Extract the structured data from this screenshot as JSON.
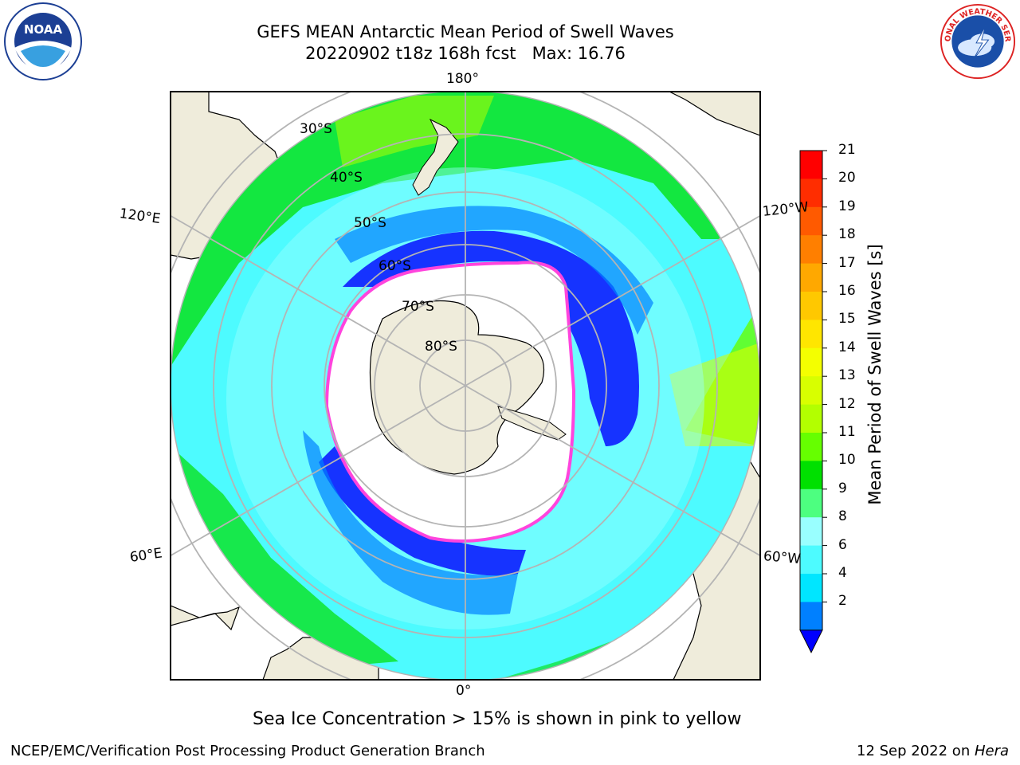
{
  "title": {
    "line1": "GEFS MEAN Antarctic Mean Period of Swell Waves",
    "line2": "20220902 t18z 168h fcst   Max: 16.76"
  },
  "map": {
    "projection": "south-polar-stereographic",
    "lon_labels": {
      "top": "180°",
      "bottom": "0°",
      "upper_left": "120°E",
      "lower_left": "60°E",
      "upper_right": "120°W",
      "lower_right": "60°W"
    },
    "lat_labels": [
      "30°S",
      "40°S",
      "50°S",
      "60°S",
      "70°S",
      "80°S"
    ],
    "colors": {
      "land": "#efecdb",
      "grid": "#b4b4b4",
      "antarctic_ice_region": "#ffffff",
      "sea_ice_edge": "#ff44dd"
    }
  },
  "colorbar": {
    "label": "Mean Period of Swell Waves [s]",
    "ticks": [
      "21",
      "20",
      "19",
      "18",
      "17",
      "16",
      "15",
      "14",
      "13",
      "12",
      "11",
      "10",
      "9",
      "8",
      "6",
      "4",
      "2"
    ],
    "colors_top_to_bottom": [
      "#ff0000",
      "#ff2d00",
      "#ff5a00",
      "#ff7f00",
      "#ffa800",
      "#ffc800",
      "#ffe600",
      "#f4ff00",
      "#d8ff00",
      "#b3ff00",
      "#66ff00",
      "#00e000",
      "#4dff80",
      "#99ffff",
      "#4dfbff",
      "#00e6ff",
      "#0080ff"
    ],
    "extend_color": "#0000ff"
  },
  "caption": "Sea Ice Concentration > 15% is shown in pink to yellow",
  "credit": "NCEP/EMC/Verification Post Processing Product Generation Branch",
  "date_prefix": "12 Sep 2022 on ",
  "date_host": "Hera",
  "logos": {
    "left": "NOAA",
    "right": "NATIONAL WEATHER SERVICE"
  }
}
